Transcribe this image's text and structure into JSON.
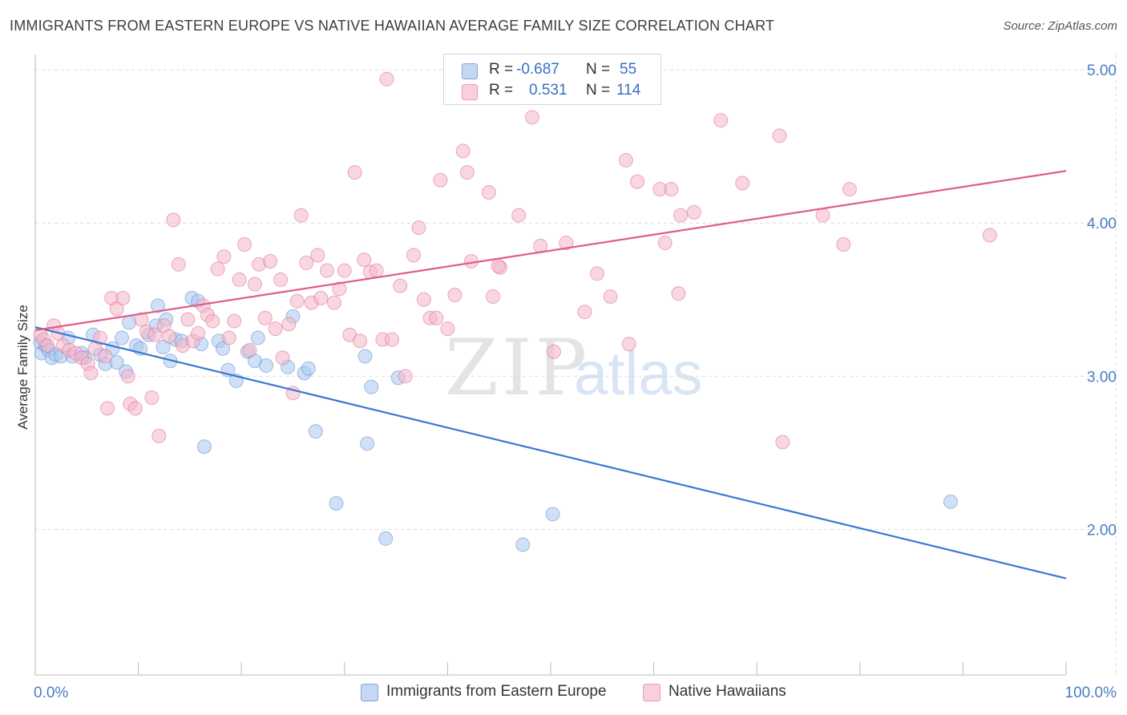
{
  "header": {
    "title": "IMMIGRANTS FROM EASTERN EUROPE VS NATIVE HAWAIIAN AVERAGE FAMILY SIZE CORRELATION CHART",
    "source": "Source: ZipAtlas.com"
  },
  "watermark": {
    "zip": "ZIP",
    "atlas": "atlas"
  },
  "legend": {
    "rows": [
      {
        "r_label": "R =",
        "r_value": "-0.687",
        "n_label": "N =",
        "n_value": "55",
        "color": "#a9c6ee"
      },
      {
        "r_label": "R =",
        "r_value": "0.531",
        "n_label": "N =",
        "n_value": "114",
        "color": "#f4b6c9"
      }
    ]
  },
  "bottom_legend": [
    {
      "label": "Immigrants from Eastern Europe",
      "color": "#a9c6ee"
    },
    {
      "label": "Native Hawaiians",
      "color": "#f4b6c9"
    }
  ],
  "chart_data": {
    "type": "scatter",
    "title": "IMMIGRANTS FROM EASTERN EUROPE VS NATIVE HAWAIIAN AVERAGE FAMILY SIZE CORRELATION CHART",
    "ylabel": "Average Family Size",
    "x_tick_labels": [
      "0.0%",
      "100.0%"
    ],
    "y_ticks": [
      2.0,
      3.0,
      4.0,
      5.0
    ],
    "y_tick_labels": [
      "2.00",
      "3.00",
      "4.00",
      "5.00"
    ],
    "xlim": [
      0,
      100
    ],
    "ylim": [
      1.05,
      5.1
    ],
    "grid": true,
    "series": [
      {
        "name": "Immigrants from Eastern Europe",
        "color": "#5b8fd6",
        "fill": "#a9c6ee",
        "trend": {
          "x": [
            0,
            100
          ],
          "y": [
            3.32,
            1.68
          ],
          "color": "#3a78d2"
        },
        "points": [
          [
            0.5,
            3.22
          ],
          [
            0.6,
            3.15
          ],
          [
            1.0,
            3.2
          ],
          [
            1.3,
            3.17
          ],
          [
            1.6,
            3.12
          ],
          [
            2.0,
            3.14
          ],
          [
            2.5,
            3.13
          ],
          [
            3.2,
            3.25
          ],
          [
            3.6,
            3.13
          ],
          [
            4.5,
            3.15
          ],
          [
            4.8,
            3.12
          ],
          [
            5.6,
            3.27
          ],
          [
            6.3,
            3.14
          ],
          [
            6.8,
            3.08
          ],
          [
            7.5,
            3.18
          ],
          [
            7.9,
            3.09
          ],
          [
            8.4,
            3.25
          ],
          [
            8.8,
            3.03
          ],
          [
            9.1,
            3.35
          ],
          [
            9.8,
            3.2
          ],
          [
            10.2,
            3.18
          ],
          [
            11.0,
            3.27
          ],
          [
            11.7,
            3.33
          ],
          [
            11.9,
            3.46
          ],
          [
            12.4,
            3.19
          ],
          [
            12.7,
            3.37
          ],
          [
            13.1,
            3.1
          ],
          [
            13.6,
            3.24
          ],
          [
            14.2,
            3.23
          ],
          [
            15.2,
            3.51
          ],
          [
            15.8,
            3.49
          ],
          [
            16.1,
            3.21
          ],
          [
            16.4,
            2.54
          ],
          [
            17.8,
            3.23
          ],
          [
            18.2,
            3.18
          ],
          [
            18.7,
            3.04
          ],
          [
            19.5,
            2.97
          ],
          [
            20.6,
            3.16
          ],
          [
            21.3,
            3.1
          ],
          [
            21.6,
            3.25
          ],
          [
            22.4,
            3.07
          ],
          [
            24.5,
            3.06
          ],
          [
            25.0,
            3.39
          ],
          [
            26.1,
            3.02
          ],
          [
            26.5,
            3.05
          ],
          [
            27.2,
            2.64
          ],
          [
            29.2,
            2.17
          ],
          [
            32.0,
            3.13
          ],
          [
            32.2,
            2.56
          ],
          [
            32.6,
            2.93
          ],
          [
            34.0,
            1.94
          ],
          [
            35.2,
            2.99
          ],
          [
            47.3,
            1.9
          ],
          [
            50.2,
            2.1
          ],
          [
            88.8,
            2.18
          ]
        ]
      },
      {
        "name": "Native Hawaiians",
        "color": "#e06a94",
        "fill": "#f4b6c9",
        "trend": {
          "x": [
            0,
            100
          ],
          "y": [
            3.3,
            4.34
          ],
          "color": "#e05c8c"
        },
        "points": [
          [
            0.5,
            3.27
          ],
          [
            0.8,
            3.24
          ],
          [
            1.2,
            3.2
          ],
          [
            1.8,
            3.33
          ],
          [
            2.2,
            3.28
          ],
          [
            2.7,
            3.2
          ],
          [
            3.3,
            3.17
          ],
          [
            3.9,
            3.15
          ],
          [
            4.5,
            3.12
          ],
          [
            5.1,
            3.08
          ],
          [
            5.4,
            3.02
          ],
          [
            5.8,
            3.18
          ],
          [
            6.3,
            3.25
          ],
          [
            6.8,
            3.13
          ],
          [
            7.0,
            2.79
          ],
          [
            7.4,
            3.51
          ],
          [
            7.9,
            3.44
          ],
          [
            8.5,
            3.51
          ],
          [
            9.0,
            3.0
          ],
          [
            9.2,
            2.82
          ],
          [
            9.7,
            2.79
          ],
          [
            10.3,
            3.37
          ],
          [
            10.8,
            3.29
          ],
          [
            11.3,
            2.86
          ],
          [
            11.6,
            3.27
          ],
          [
            12.0,
            2.61
          ],
          [
            12.5,
            3.33
          ],
          [
            13.0,
            3.26
          ],
          [
            13.4,
            4.02
          ],
          [
            13.9,
            3.73
          ],
          [
            14.3,
            3.2
          ],
          [
            14.8,
            3.37
          ],
          [
            15.3,
            3.23
          ],
          [
            15.8,
            3.28
          ],
          [
            16.3,
            3.46
          ],
          [
            16.7,
            3.4
          ],
          [
            17.2,
            3.36
          ],
          [
            17.7,
            3.7
          ],
          [
            18.3,
            3.78
          ],
          [
            18.8,
            3.25
          ],
          [
            19.3,
            3.36
          ],
          [
            19.8,
            3.63
          ],
          [
            20.3,
            3.86
          ],
          [
            20.8,
            3.17
          ],
          [
            21.3,
            3.6
          ],
          [
            21.7,
            3.73
          ],
          [
            22.3,
            3.38
          ],
          [
            22.8,
            3.75
          ],
          [
            23.3,
            3.31
          ],
          [
            23.8,
            3.63
          ],
          [
            24.0,
            3.12
          ],
          [
            24.6,
            3.34
          ],
          [
            25.0,
            2.89
          ],
          [
            25.4,
            3.49
          ],
          [
            25.8,
            4.05
          ],
          [
            26.3,
            3.74
          ],
          [
            26.8,
            3.48
          ],
          [
            27.4,
            3.79
          ],
          [
            27.7,
            3.51
          ],
          [
            28.3,
            3.69
          ],
          [
            29.0,
            3.48
          ],
          [
            29.5,
            3.57
          ],
          [
            30.0,
            3.69
          ],
          [
            30.5,
            3.27
          ],
          [
            31.0,
            4.33
          ],
          [
            31.5,
            3.23
          ],
          [
            31.9,
            3.76
          ],
          [
            32.5,
            3.68
          ],
          [
            33.1,
            3.69
          ],
          [
            33.7,
            3.24
          ],
          [
            34.1,
            4.94
          ],
          [
            34.6,
            3.24
          ],
          [
            35.4,
            3.59
          ],
          [
            35.9,
            3.0
          ],
          [
            36.7,
            3.79
          ],
          [
            37.2,
            3.97
          ],
          [
            37.7,
            3.5
          ],
          [
            38.3,
            3.38
          ],
          [
            38.9,
            3.38
          ],
          [
            39.3,
            4.28
          ],
          [
            40.0,
            3.31
          ],
          [
            40.7,
            3.53
          ],
          [
            41.5,
            4.47
          ],
          [
            41.9,
            4.33
          ],
          [
            42.3,
            3.75
          ],
          [
            44.0,
            4.2
          ],
          [
            44.4,
            3.52
          ],
          [
            45.1,
            3.71
          ],
          [
            46.9,
            4.05
          ],
          [
            48.2,
            4.69
          ],
          [
            49.0,
            3.85
          ],
          [
            50.3,
            3.16
          ],
          [
            51.5,
            3.87
          ],
          [
            53.3,
            3.42
          ],
          [
            54.5,
            3.67
          ],
          [
            55.8,
            3.52
          ],
          [
            57.3,
            4.41
          ],
          [
            57.6,
            3.21
          ],
          [
            58.4,
            4.27
          ],
          [
            60.6,
            4.22
          ],
          [
            61.1,
            3.87
          ],
          [
            61.7,
            4.22
          ],
          [
            62.4,
            3.54
          ],
          [
            62.6,
            4.05
          ],
          [
            63.9,
            4.07
          ],
          [
            66.5,
            4.67
          ],
          [
            68.6,
            4.26
          ],
          [
            72.2,
            4.57
          ],
          [
            72.5,
            2.57
          ],
          [
            76.4,
            4.05
          ],
          [
            78.4,
            3.86
          ],
          [
            79.0,
            4.22
          ],
          [
            92.6,
            3.92
          ],
          [
            44.9,
            3.72
          ]
        ]
      }
    ]
  }
}
